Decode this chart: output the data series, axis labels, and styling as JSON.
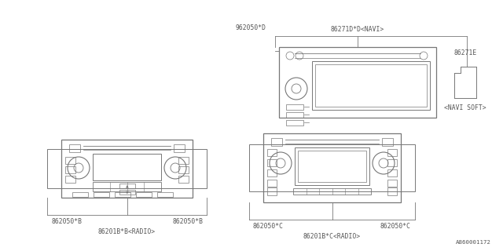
{
  "bg_color": "#ffffff",
  "line_color": "#777777",
  "text_color": "#555555",
  "font_size": 5.8,
  "diagram_ref": "A860001172",
  "navi_label": "86271D*D<NAVI>",
  "navi_bracket_label": "962050*D",
  "navi_soft_label": "86271E",
  "navi_soft_sub": "<NAVI SOFT>",
  "radio_b_label": "86201B*B<RADIO>",
  "radio_b_left": "862050*B",
  "radio_b_right": "862050*B",
  "radio_c_label": "86201B*C<RADIO>",
  "radio_c_left": "862050*C",
  "radio_c_right": "862050*C"
}
